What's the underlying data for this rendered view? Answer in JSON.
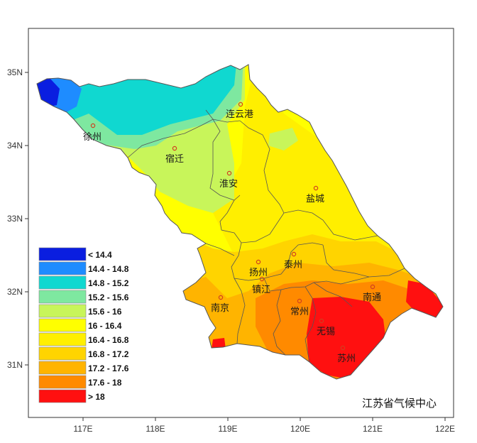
{
  "map": {
    "axis": {
      "x_ticks": [
        "117E",
        "118E",
        "119E",
        "120E",
        "121E",
        "122E"
      ],
      "y_ticks": [
        "35N",
        "34N",
        "33N",
        "32N",
        "31N"
      ]
    },
    "cities": [
      "连云港",
      "徐州",
      "宿迁",
      "淮安",
      "盐城",
      "扬州",
      "泰州",
      "镇江",
      "南京",
      "常州",
      "南通",
      "无锡",
      "苏州"
    ],
    "legend": {
      "items": [
        {
          "label": "< 14.4",
          "color": "#0a1ee0"
        },
        {
          "label": "14.4 - 14.8",
          "color": "#1e8cff"
        },
        {
          "label": "14.8 - 15.2",
          "color": "#10d8d0"
        },
        {
          "label": "15.2 - 15.6",
          "color": "#7ee8a0"
        },
        {
          "label": "15.6 - 16",
          "color": "#c8f55a"
        },
        {
          "label": "16 - 16.4",
          "color": "#ffff00"
        },
        {
          "label": "16.4 - 16.8",
          "color": "#ffef00"
        },
        {
          "label": "16.8 - 17.2",
          "color": "#ffd400"
        },
        {
          "label": "17.2 - 17.6",
          "color": "#ffb400"
        },
        {
          "label": "17.6 - 18",
          "color": "#ff8a00"
        },
        {
          "label": "> 18",
          "color": "#ff1010"
        }
      ]
    },
    "credit": "江苏省气候中心"
  }
}
